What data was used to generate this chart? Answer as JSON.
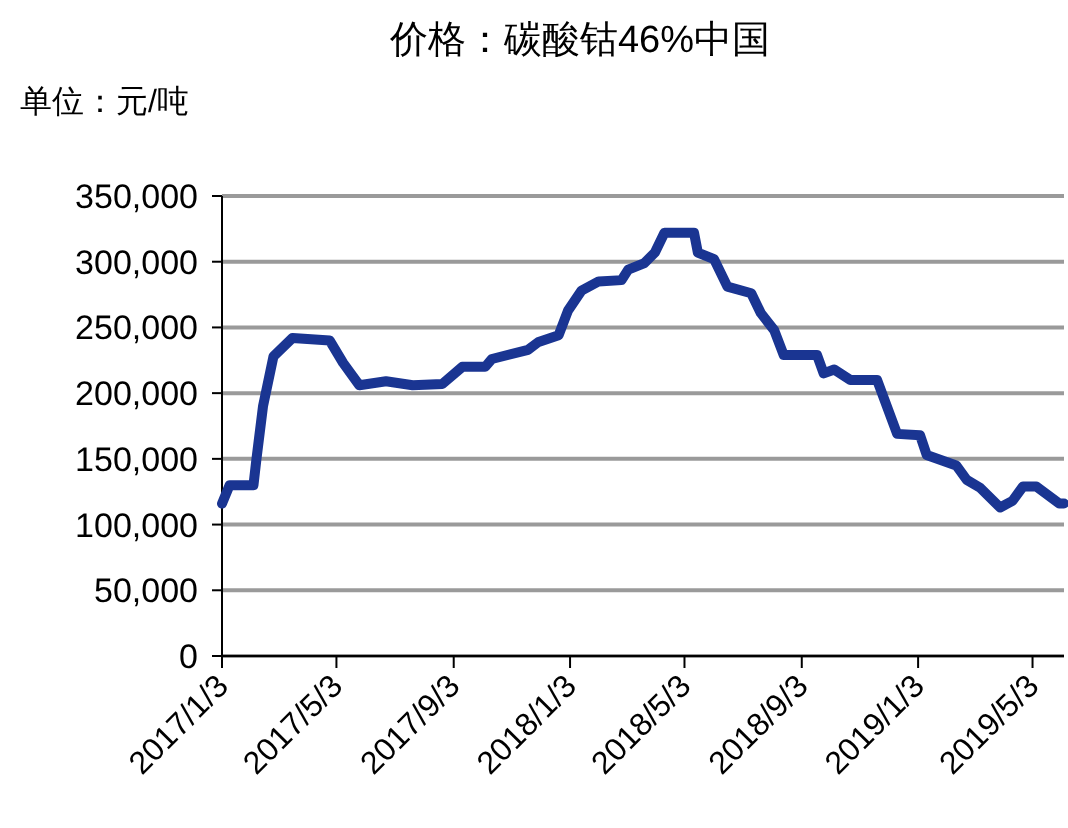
{
  "chart_data": {
    "type": "line",
    "title": "价格：碳酸钴46%中国",
    "ylabel": "单位：元/吨",
    "x": [
      "2017-01-03",
      "2017-01-11",
      "2017-02-05",
      "2017-02-08",
      "2017-02-15",
      "2017-02-26",
      "2017-03-18",
      "2017-04-26",
      "2017-05-10",
      "2017-05-27",
      "2017-06-24",
      "2017-07-22",
      "2017-08-22",
      "2017-09-12",
      "2017-10-06",
      "2017-10-13",
      "2017-11-20",
      "2017-12-01",
      "2017-12-22",
      "2018-01-01",
      "2018-01-15",
      "2018-02-02",
      "2018-02-26",
      "2018-03-05",
      "2018-03-22",
      "2018-04-02",
      "2018-04-12",
      "2018-05-13",
      "2018-05-17",
      "2018-06-03",
      "2018-06-17",
      "2018-07-12",
      "2018-07-22",
      "2018-08-05",
      "2018-08-15",
      "2018-09-19",
      "2018-09-26",
      "2018-10-07",
      "2018-10-24",
      "2018-11-21",
      "2018-12-12",
      "2019-01-05",
      "2019-01-12",
      "2019-02-12",
      "2019-02-23",
      "2019-03-09",
      "2019-03-30",
      "2019-04-12",
      "2019-04-23",
      "2019-05-07",
      "2019-05-31",
      "2019-06-05"
    ],
    "series": [
      {
        "color": "#1a3592",
        "values": [
          116000,
          130000,
          130000,
          149000,
          190000,
          228000,
          242000,
          240000,
          223000,
          206000,
          209000,
          206000,
          207000,
          220000,
          220000,
          226000,
          233000,
          239000,
          244000,
          263000,
          278000,
          285000,
          286000,
          294000,
          299000,
          307000,
          322000,
          322000,
          307000,
          302000,
          281000,
          276000,
          261000,
          248000,
          229000,
          229000,
          215000,
          218000,
          210000,
          210000,
          169000,
          168000,
          153000,
          145000,
          134000,
          128000,
          113000,
          118000,
          129000,
          129000,
          116000,
          116000
        ]
      }
    ],
    "xlim": [
      "2017-01-03",
      "2019-06-05"
    ],
    "xticks": [
      {
        "value": "2017-01-03",
        "label": "2017/1/3"
      },
      {
        "value": "2017-05-03",
        "label": "2017/5/3"
      },
      {
        "value": "2017-09-03",
        "label": "2017/9/3"
      },
      {
        "value": "2018-01-03",
        "label": "2018/1/3"
      },
      {
        "value": "2018-05-03",
        "label": "2018/5/3"
      },
      {
        "value": "2018-09-03",
        "label": "2018/9/3"
      },
      {
        "value": "2019-01-03",
        "label": "2019/1/3"
      },
      {
        "value": "2019-05-03",
        "label": "2019/5/3"
      }
    ],
    "ylim": [
      0,
      350000
    ],
    "yticks": [
      0,
      {
        "value": 50000,
        "label": "50,000"
      },
      {
        "value": 100000,
        "label": "100,000"
      },
      {
        "value": 150000,
        "label": "150,000"
      },
      {
        "value": 200000,
        "label": "200,000"
      },
      {
        "value": 250000,
        "label": "250,000"
      },
      {
        "value": 300000,
        "label": "300,000"
      },
      {
        "value": 350000,
        "label": "350,000"
      }
    ],
    "grid": "y",
    "marker": "none",
    "line_style": "solid"
  }
}
